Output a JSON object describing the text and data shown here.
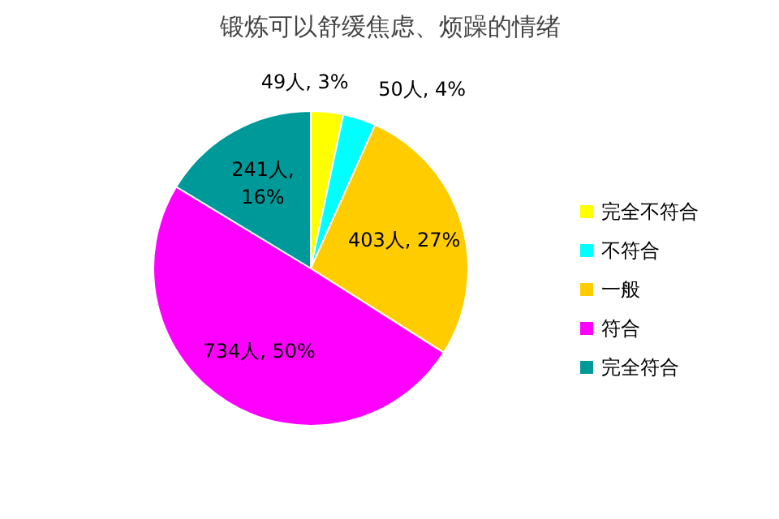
{
  "chart_data": {
    "type": "pie",
    "title": "锻炼可以舒缓焦虑、烦躁的情绪",
    "categories": [
      "完全不符合",
      "不符合",
      "一般",
      "符合",
      "完全符合"
    ],
    "values": [
      49,
      50,
      403,
      734,
      241
    ],
    "colors": [
      "#ffff00",
      "#00ffff",
      "#ffcc00",
      "#ff00ff",
      "#009999"
    ],
    "value_labels": [
      "49人, 3%",
      "50人, 4%",
      "403人, 27%",
      "734人, 50%",
      "241人, 16%"
    ],
    "legend": "right"
  }
}
